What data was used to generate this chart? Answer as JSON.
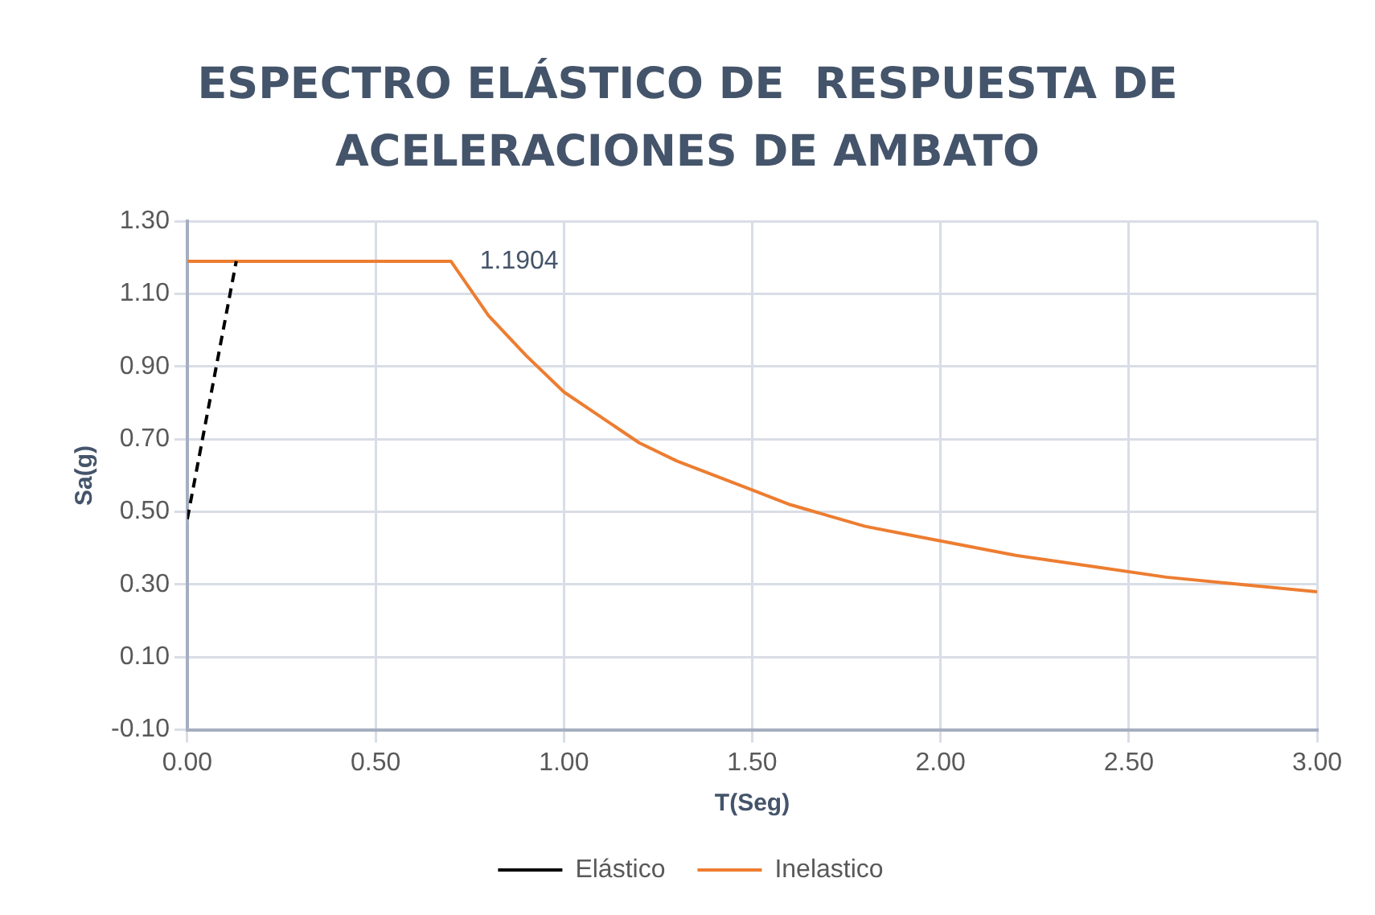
{
  "chart_data": {
    "type": "line",
    "title": "ESPECTRO ELÁSTICO DE  RESPUESTA DE ACELERACIONES DE AMBATO",
    "xlabel": "T(Seg)",
    "ylabel": "Sa(g)",
    "xlim": [
      0,
      3
    ],
    "ylim": [
      -0.1,
      1.3
    ],
    "xticks": [
      {
        "value": 0,
        "label": "0.00"
      },
      {
        "value": 0.5,
        "label": "0.50"
      },
      {
        "value": 1,
        "label": "1.00"
      },
      {
        "value": 1.5,
        "label": "1.50"
      },
      {
        "value": 2,
        "label": "2.00"
      },
      {
        "value": 2.5,
        "label": "2.50"
      },
      {
        "value": 3,
        "label": "3.00"
      }
    ],
    "yticks": [
      {
        "value": -0.1,
        "label": "-0.10"
      },
      {
        "value": 0.1,
        "label": "0.10"
      },
      {
        "value": 0.3,
        "label": "0.30"
      },
      {
        "value": 0.5,
        "label": "0.50"
      },
      {
        "value": 0.7,
        "label": "0.70"
      },
      {
        "value": 0.9,
        "label": "0.90"
      },
      {
        "value": 1.1,
        "label": "1.10"
      },
      {
        "value": 1.3,
        "label": "1.30"
      }
    ],
    "series": [
      {
        "name": "Elástico",
        "color": "#000000",
        "line_style": "dashed",
        "x": [
          0,
          0.13
        ],
        "values": [
          0.48,
          1.19
        ]
      },
      {
        "name": "Inelastico",
        "color": "#ed7d31",
        "line_style": "solid",
        "x": [
          0,
          0.7,
          0.8,
          0.9,
          1.0,
          1.1,
          1.2,
          1.3,
          1.4,
          1.5,
          1.6,
          1.7,
          1.8,
          1.9,
          2.0,
          2.2,
          2.4,
          2.6,
          2.8,
          3.0
        ],
        "values": [
          1.19,
          1.19,
          1.04,
          0.93,
          0.83,
          0.76,
          0.69,
          0.64,
          0.6,
          0.56,
          0.52,
          0.49,
          0.46,
          0.44,
          0.42,
          0.38,
          0.35,
          0.32,
          0.3,
          0.28
        ]
      }
    ],
    "annotations": [
      {
        "text": "1.1904",
        "x": 0.7,
        "y": 1.19
      }
    ],
    "grid": true,
    "legend": "bottom",
    "marker": "none"
  }
}
